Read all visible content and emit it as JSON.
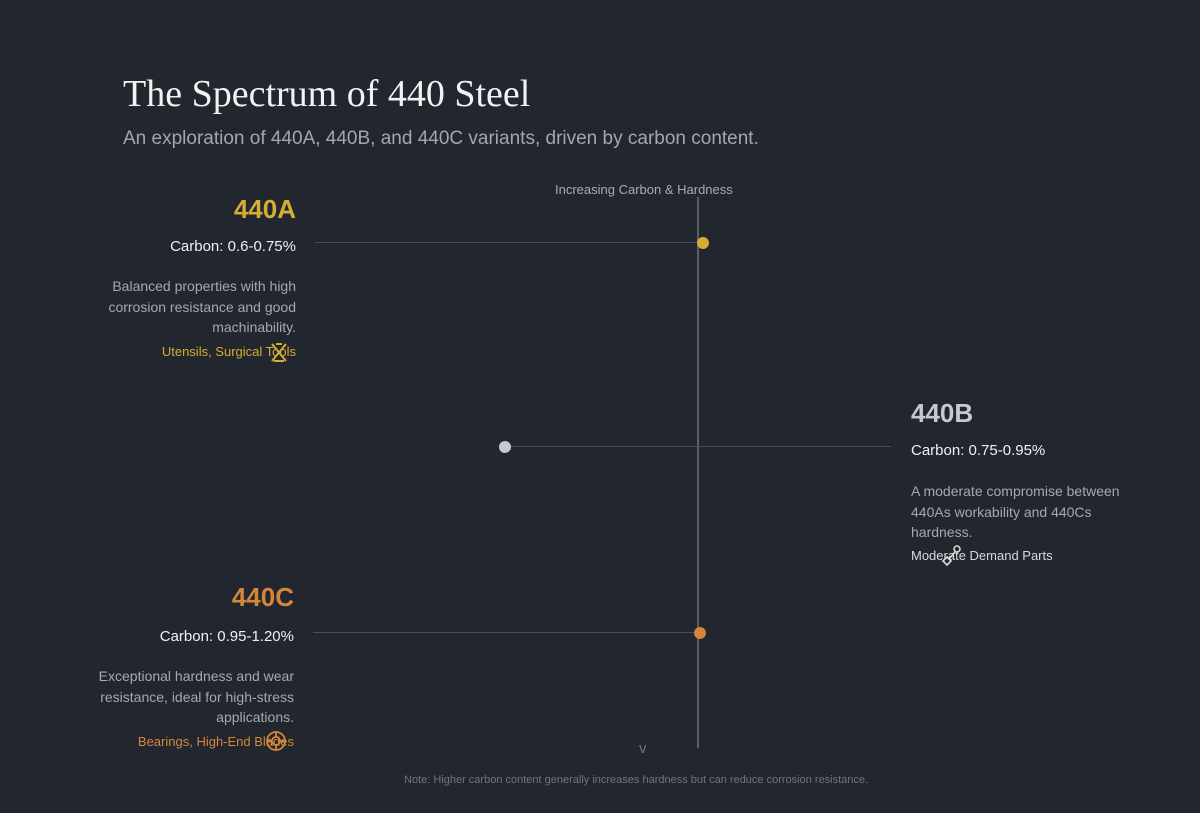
{
  "header": {
    "title": "The Spectrum of 440 Steel",
    "subtitle": "An exploration of 440A, 440B, and 440C variants, driven by carbon content."
  },
  "axis": {
    "label": "Increasing Carbon & Hardness",
    "scroll_icon": "chevron-down-icon",
    "scroll_glyph": "v"
  },
  "variants": [
    {
      "name": "440A",
      "carbon": "Carbon: 0.6-0.75%",
      "description": "Balanced properties with high corrosion resistance and good machinability.",
      "applications": "Utensils, Surgical Tools",
      "color": "#d4ae32",
      "icon": "crossed-tools-icon"
    },
    {
      "name": "440B",
      "carbon": "Carbon: 0.75-0.95%",
      "description": "A moderate compromise between 440As workability and 440Cs hardness.",
      "applications": "Moderate Demand Parts",
      "color": "#c8c9cc",
      "icon": "wrench-icon"
    },
    {
      "name": "440C",
      "carbon": "Carbon: 0.95-1.20%",
      "description": "Exceptional hardness and wear resistance, ideal for high-stress applications.",
      "applications": "Bearings, High-End Blades",
      "color": "#d4873a",
      "icon": "bearing-icon"
    }
  ],
  "footer": {
    "note": "Note: Higher carbon content generally increases hardness but can reduce corrosion resistance."
  }
}
